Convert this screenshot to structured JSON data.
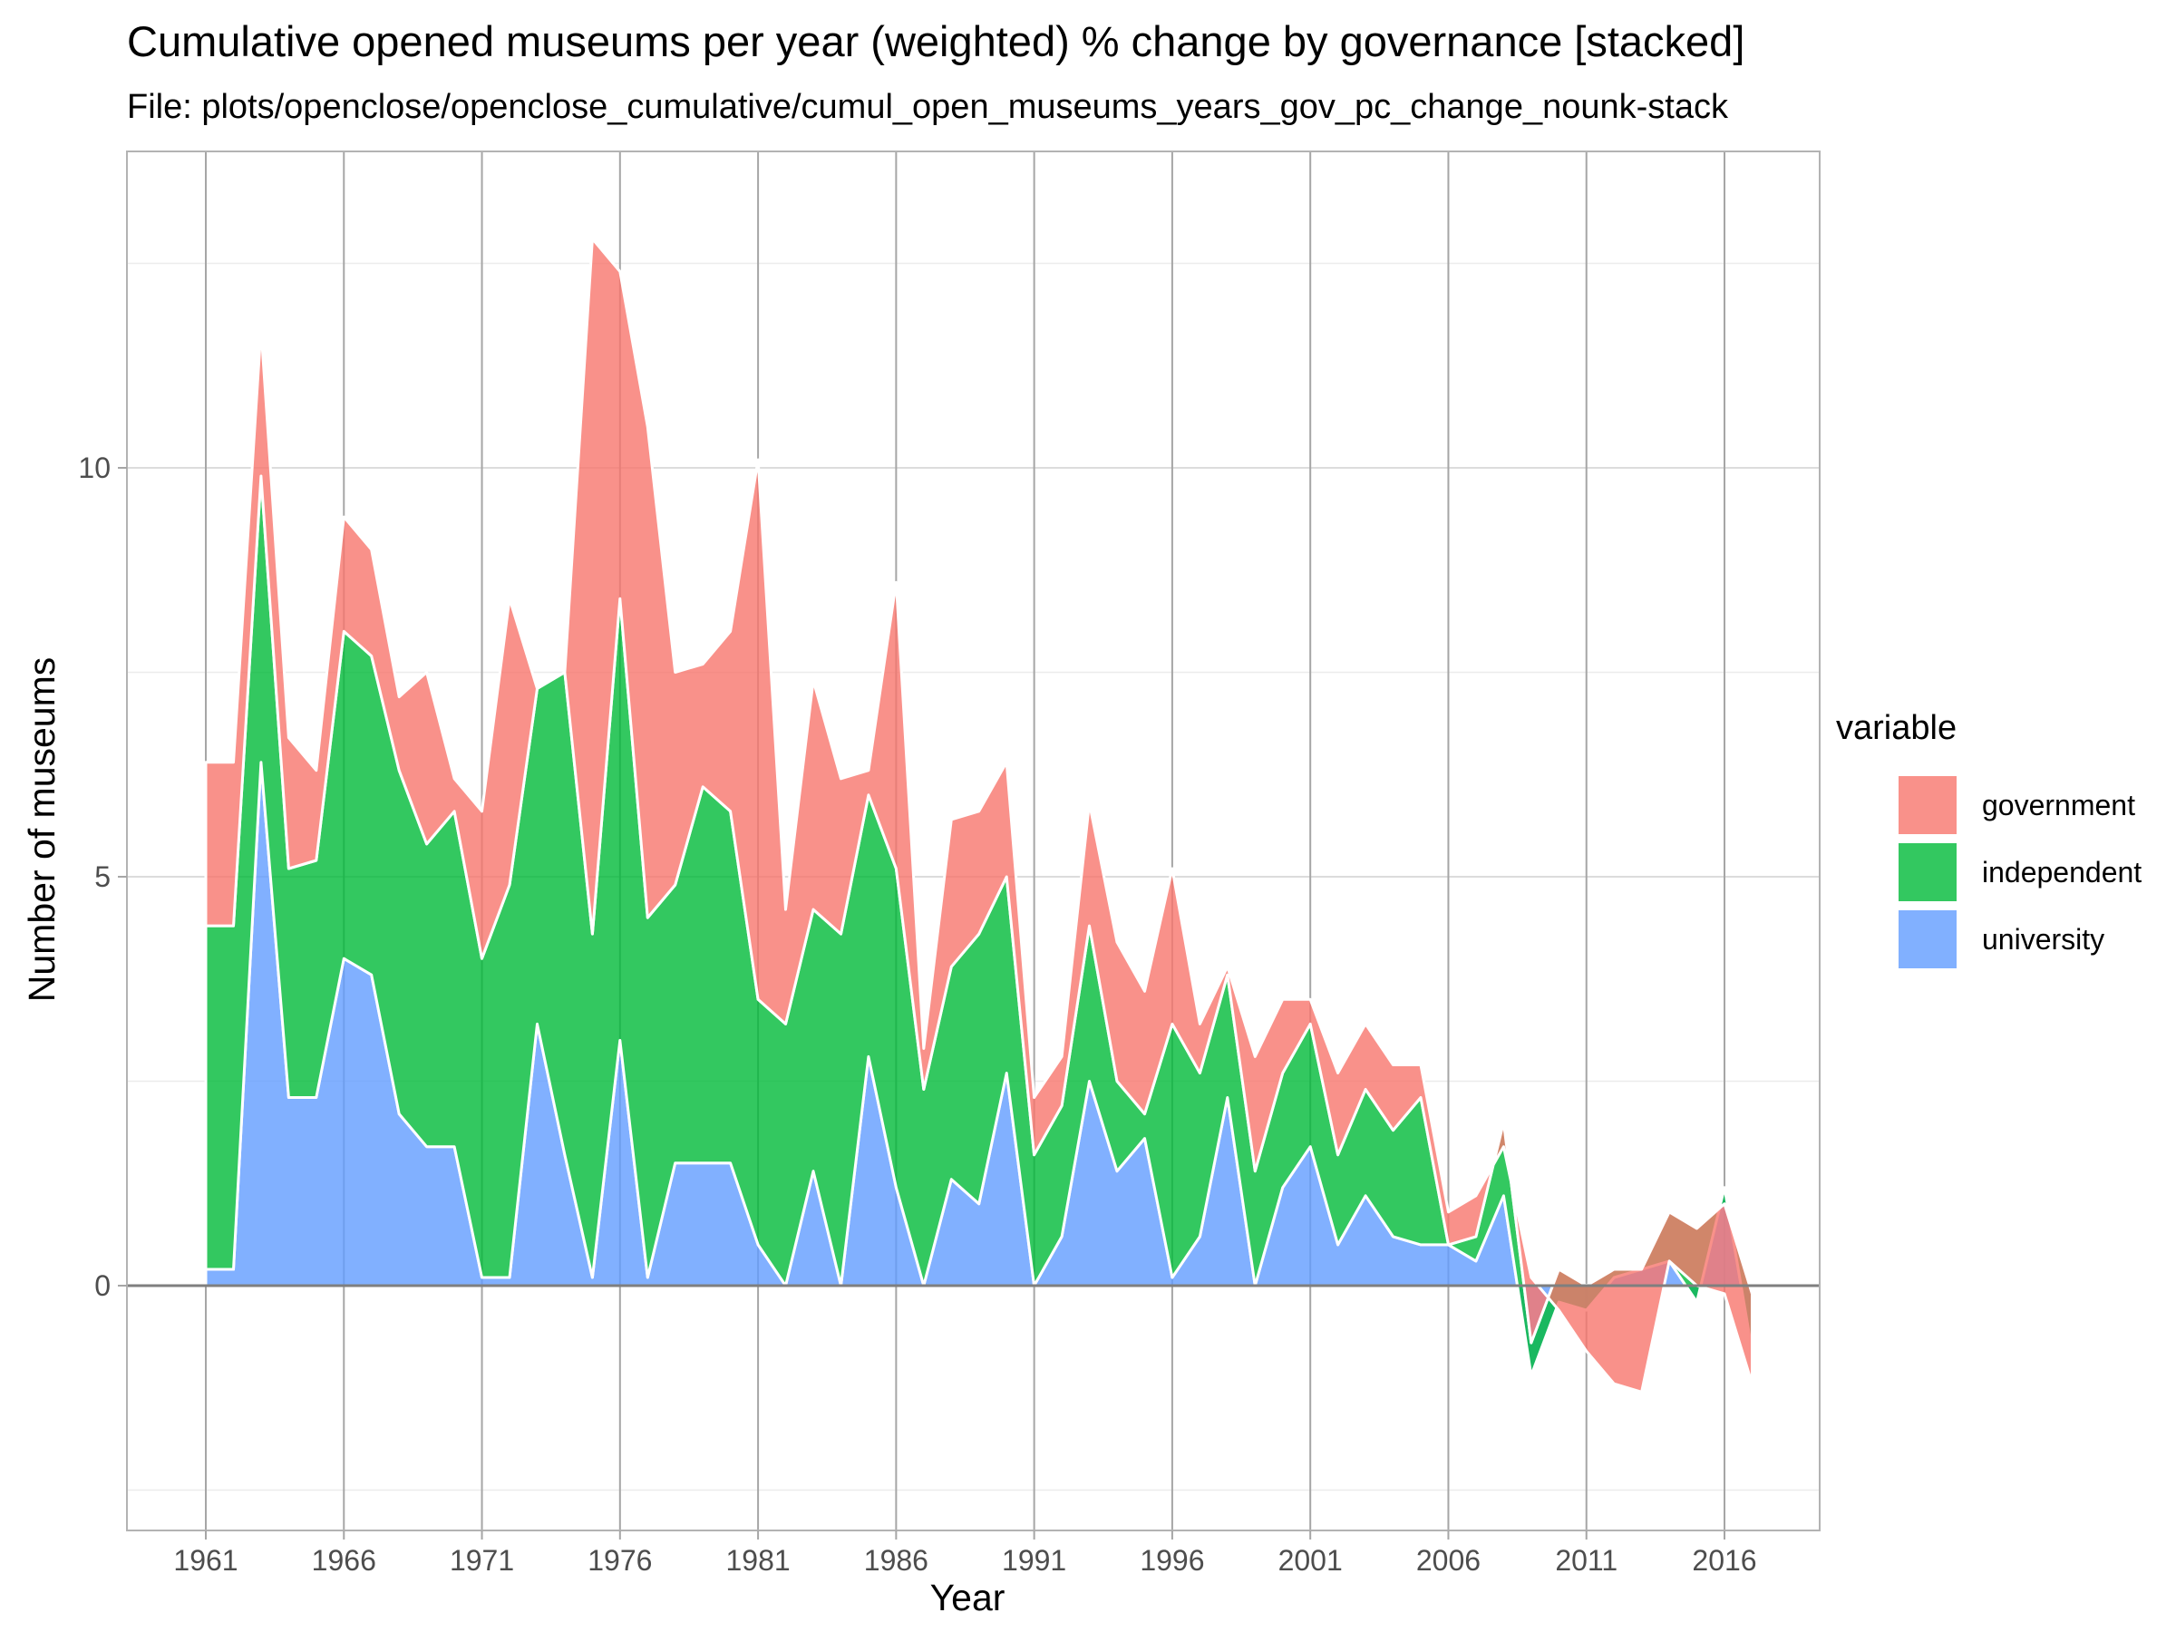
{
  "chart_data": {
    "type": "area",
    "stacked": true,
    "title": "Cumulative opened museums per year (weighted) % change by governance [stacked]",
    "subtitle": "File: plots/openclose/openclose_cumulative/cumul_open_museums_years_gov_pc_change_nounk-stack",
    "xlabel": "Year",
    "ylabel": "Number of museums",
    "xlim": [
      1961,
      2017
    ],
    "ylim": [
      -2.9,
      13.7
    ],
    "x_ticks": [
      "1961",
      "1966",
      "1971",
      "1976",
      "1981",
      "1986",
      "1991",
      "1996",
      "2001",
      "2006",
      "2011",
      "2016"
    ],
    "y_ticks": [
      "0",
      "5",
      "10"
    ],
    "grid": true,
    "legend": {
      "title": "variable",
      "position": "right"
    },
    "colors": {
      "government": "#f8766d",
      "independent": "#00ba38",
      "university": "#619cff",
      "baseline": "#7f7f7f",
      "grid_major": "#dcdcdc",
      "grid_minor": "#ececec",
      "panel_border": "#b3b3b3",
      "vertical_lines": "#a6a6a6"
    },
    "x": [
      1961,
      1962,
      1963,
      1964,
      1965,
      1966,
      1967,
      1968,
      1969,
      1970,
      1971,
      1972,
      1973,
      1974,
      1975,
      1976,
      1977,
      1978,
      1979,
      1980,
      1981,
      1982,
      1983,
      1984,
      1985,
      1986,
      1987,
      1988,
      1989,
      1990,
      1991,
      1992,
      1993,
      1994,
      1995,
      1996,
      1997,
      1998,
      1999,
      2000,
      2001,
      2002,
      2003,
      2004,
      2005,
      2006,
      2007,
      2008,
      2009,
      2010,
      2011,
      2012,
      2013,
      2014,
      2015,
      2016,
      2017
    ],
    "series": [
      {
        "name": "university",
        "values": [
          0.2,
          0.2,
          6.4,
          2.3,
          2.3,
          4.0,
          3.8,
          2.1,
          1.7,
          1.7,
          0.1,
          0.1,
          3.2,
          1.6,
          0.1,
          3.0,
          0.1,
          1.5,
          1.5,
          1.5,
          0.5,
          0.0,
          1.4,
          0.0,
          2.8,
          1.2,
          0.0,
          1.3,
          1.0,
          2.6,
          0.0,
          0.6,
          2.5,
          1.4,
          1.8,
          0.1,
          0.6,
          2.3,
          0.0,
          1.2,
          1.7,
          0.5,
          1.1,
          0.6,
          0.5,
          0.5,
          0.3,
          1.1,
          -1.1,
          -0.2,
          -0.3,
          0.1,
          0.2,
          0.3,
          -0.2,
          1.2,
          -0.8
        ]
      },
      {
        "name": "independent",
        "values": [
          4.2,
          4.2,
          3.5,
          2.8,
          2.9,
          4.0,
          3.9,
          4.2,
          3.7,
          4.1,
          3.9,
          4.8,
          4.1,
          5.9,
          4.2,
          5.4,
          4.4,
          3.4,
          4.6,
          4.3,
          3.0,
          3.2,
          3.2,
          4.3,
          3.2,
          3.9,
          2.4,
          2.6,
          3.3,
          2.4,
          1.6,
          1.6,
          1.9,
          1.1,
          0.3,
          3.1,
          2.0,
          1.5,
          1.4,
          1.4,
          1.5,
          1.1,
          1.3,
          1.3,
          1.8,
          0.0,
          0.3,
          0.9,
          0.4,
          0.4,
          0.3,
          0.1,
          0.0,
          0.6,
          0.9,
          -0.2,
          0.7
        ]
      },
      {
        "name": "government",
        "values": [
          2.0,
          2.0,
          1.8,
          1.6,
          1.1,
          1.4,
          1.3,
          0.9,
          2.1,
          0.4,
          1.8,
          3.5,
          0.0,
          0.0,
          8.5,
          4.0,
          6.0,
          2.6,
          1.5,
          2.2,
          6.6,
          1.4,
          2.8,
          1.9,
          0.3,
          3.5,
          0.5,
          1.8,
          1.5,
          1.4,
          0.7,
          0.6,
          1.5,
          1.7,
          1.5,
          1.9,
          0.6,
          0.1,
          1.4,
          0.9,
          0.3,
          1.0,
          0.8,
          0.8,
          0.4,
          0.4,
          0.5,
          -0.3,
          0.8,
          -0.5,
          -0.8,
          -1.4,
          -1.5,
          -0.6,
          -0.7,
          -1.1,
          -1.1
        ]
      }
    ]
  }
}
